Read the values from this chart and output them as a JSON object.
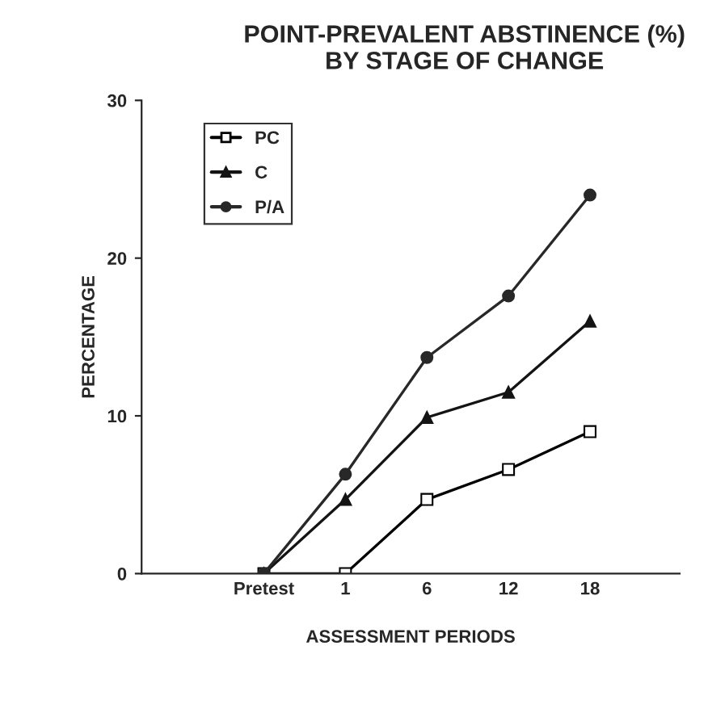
{
  "chart_data": {
    "type": "line",
    "title": "POINT-PREVALENT ABSTINENCE (%)\nBY STAGE OF CHANGE",
    "xlabel": "ASSESSMENT PERIODS",
    "ylabel": "PERCENTAGE",
    "categories": [
      "Pretest",
      "1",
      "6",
      "12",
      "18"
    ],
    "series": [
      {
        "name": "PC",
        "color": "#000000",
        "marker": "square",
        "values": [
          0,
          0,
          4.7,
          6.6,
          9.0
        ]
      },
      {
        "name": "C",
        "color": "#141414",
        "marker": "triangle",
        "values": [
          0,
          4.7,
          9.9,
          11.5,
          16.0
        ]
      },
      {
        "name": "P/A",
        "color": "#282828",
        "marker": "circle",
        "values": [
          0,
          6.3,
          13.7,
          17.6,
          24.0
        ]
      }
    ],
    "ylim": [
      0,
      30
    ],
    "yticks": [
      0,
      10,
      20,
      30
    ],
    "grid": false,
    "legend": "top left",
    "line_style": "solid"
  }
}
